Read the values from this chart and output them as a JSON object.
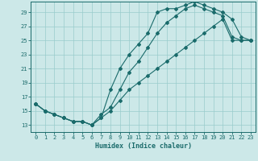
{
  "xlabel": "Humidex (Indice chaleur)",
  "bg_color": "#cce8e8",
  "grid_color": "#99cccc",
  "line_color": "#1a6b6b",
  "xlim": [
    -0.5,
    23.5
  ],
  "ylim": [
    12.0,
    30.5
  ],
  "yticks": [
    13,
    15,
    17,
    19,
    21,
    23,
    25,
    27,
    29
  ],
  "xticks": [
    0,
    1,
    2,
    3,
    4,
    5,
    6,
    7,
    8,
    9,
    10,
    11,
    12,
    13,
    14,
    15,
    16,
    17,
    18,
    19,
    20,
    21,
    22,
    23
  ],
  "line1_x": [
    0,
    1,
    2,
    3,
    4,
    5,
    6,
    7,
    8,
    9,
    10,
    11,
    12,
    13,
    14,
    15,
    16,
    17,
    18,
    19,
    20,
    21,
    22,
    23
  ],
  "line1_y": [
    16.0,
    15.0,
    14.5,
    14.0,
    13.5,
    13.5,
    13.0,
    14.0,
    18.0,
    21.0,
    23.0,
    24.5,
    26.0,
    29.0,
    29.5,
    29.5,
    30.0,
    30.5,
    30.0,
    29.5,
    29.0,
    28.0,
    25.5,
    25.0
  ],
  "line2_x": [
    0,
    1,
    2,
    3,
    4,
    5,
    6,
    7,
    8,
    9,
    10,
    11,
    12,
    13,
    14,
    15,
    16,
    17,
    18,
    19,
    20,
    21,
    22,
    23
  ],
  "line2_y": [
    16.0,
    15.0,
    14.5,
    14.0,
    13.5,
    13.5,
    13.0,
    14.5,
    15.5,
    18.0,
    20.5,
    22.0,
    24.0,
    26.0,
    27.5,
    28.5,
    29.5,
    30.0,
    29.5,
    29.0,
    28.5,
    25.5,
    25.0,
    25.0
  ],
  "line3_x": [
    0,
    1,
    2,
    3,
    4,
    5,
    6,
    7,
    8,
    9,
    10,
    11,
    12,
    13,
    14,
    15,
    16,
    17,
    18,
    19,
    20,
    21,
    22,
    23
  ],
  "line3_y": [
    16.0,
    15.0,
    14.5,
    14.0,
    13.5,
    13.5,
    13.0,
    14.0,
    15.0,
    16.5,
    18.0,
    19.0,
    20.0,
    21.0,
    22.0,
    23.0,
    24.0,
    25.0,
    26.0,
    27.0,
    28.0,
    25.0,
    25.0,
    25.0
  ]
}
